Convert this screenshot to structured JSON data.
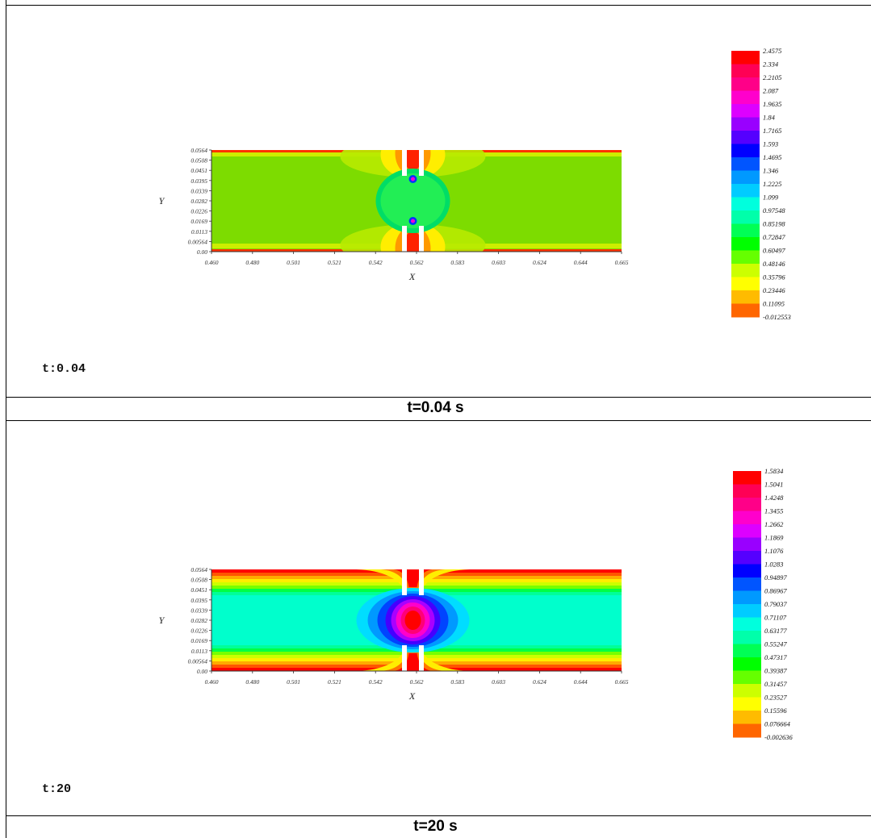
{
  "chart_data": [
    {
      "type": "heatmap",
      "time_label": "t:0.04",
      "caption": "t=0.04 s",
      "xlabel": "X",
      "ylabel": "Y",
      "xticks": [
        "0.460",
        "0.480",
        "0.501",
        "0.521",
        "0.542",
        "0.562",
        "0.583",
        "0.603",
        "0.624",
        "0.644",
        "0.665"
      ],
      "yticks": [
        "0.0564",
        "0.0508",
        "0.0451",
        "0.0395",
        "0.0339",
        "0.0282",
        "0.0226",
        "0.0169",
        "0.0113",
        "0.00564",
        "0.00"
      ],
      "xlim": [
        0.46,
        0.665
      ],
      "ylim": [
        0.0,
        0.0564
      ],
      "legend_levels": [
        "2.4575",
        "2.334",
        "2.2105",
        "2.087",
        "1.9635",
        "1.84",
        "1.7165",
        "1.593",
        "1.4695",
        "1.346",
        "1.2225",
        "1.099",
        "0.97548",
        "0.85198",
        "0.72847",
        "0.60497",
        "0.48146",
        "0.35796",
        "0.23446",
        "0.11095",
        "-0.012553"
      ],
      "legend_colors": [
        "#ff0000",
        "#ff0055",
        "#ff0088",
        "#ff00cc",
        "#dd00ff",
        "#9900ff",
        "#5500ff",
        "#0000ff",
        "#0055ff",
        "#0099ff",
        "#00ccff",
        "#00ffdd",
        "#00ffaa",
        "#00ff55",
        "#00ff00",
        "#66ff00",
        "#ccff00",
        "#ffff00",
        "#ffbb00",
        "#ff6600",
        "#ff0000"
      ],
      "field_color": "#7ddc00"
    },
    {
      "type": "heatmap",
      "time_label": "t:20",
      "caption": "t=20 s",
      "xlabel": "X",
      "ylabel": "Y",
      "xticks": [
        "0.460",
        "0.480",
        "0.501",
        "0.521",
        "0.542",
        "0.562",
        "0.583",
        "0.603",
        "0.624",
        "0.644",
        "0.665"
      ],
      "yticks": [
        "0.0564",
        "0.0508",
        "0.0451",
        "0.0395",
        "0.0339",
        "0.0282",
        "0.0226",
        "0.0169",
        "0.0113",
        "0.00564",
        "0.00"
      ],
      "xlim": [
        0.46,
        0.665
      ],
      "ylim": [
        0.0,
        0.0564
      ],
      "legend_levels": [
        "1.5834",
        "1.5041",
        "1.4248",
        "1.3455",
        "1.2662",
        "1.1869",
        "1.1076",
        "1.0283",
        "0.94897",
        "0.86967",
        "0.79037",
        "0.71107",
        "0.63177",
        "0.55247",
        "0.47317",
        "0.39387",
        "0.31457",
        "0.23527",
        "0.15596",
        "0.076664",
        "-0.002636"
      ],
      "legend_colors": [
        "#ff0000",
        "#ff0055",
        "#ff0088",
        "#ff00cc",
        "#dd00ff",
        "#9900ff",
        "#5500ff",
        "#0000ff",
        "#0055ff",
        "#0099ff",
        "#00ccff",
        "#00ffdd",
        "#00ffaa",
        "#00ff55",
        "#00ff00",
        "#66ff00",
        "#ccff00",
        "#ffff00",
        "#ffbb00",
        "#ff6600",
        "#ff0000"
      ],
      "field_color": "#00ffcc"
    }
  ]
}
